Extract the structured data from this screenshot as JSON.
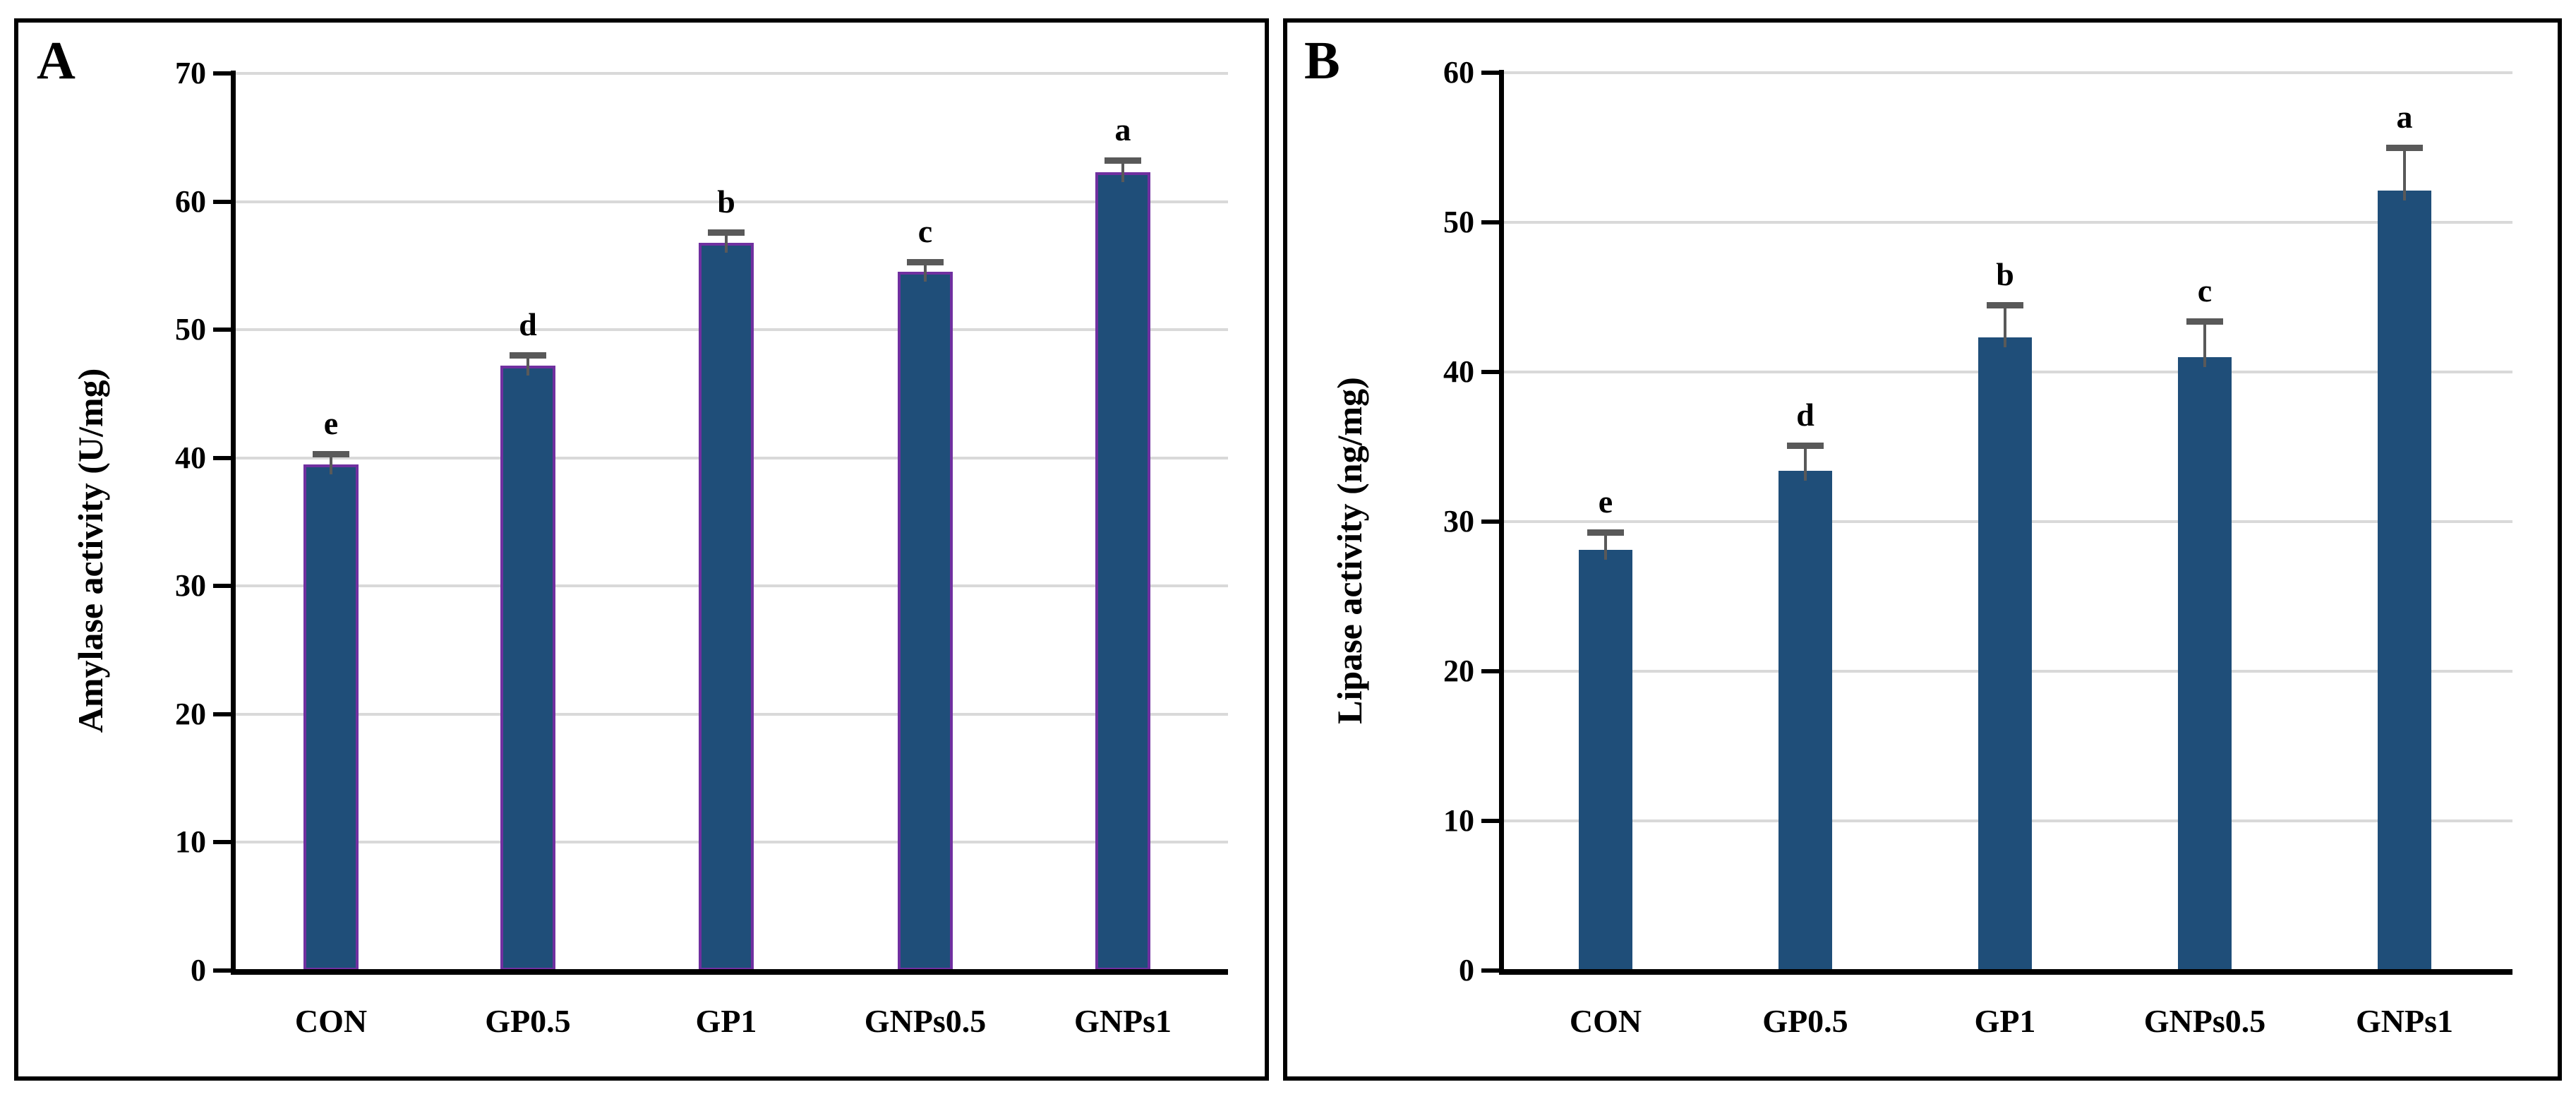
{
  "figure": {
    "background": "#ffffff",
    "panel_border_color": "#000000",
    "gridline_color": "#d9d9d9"
  },
  "chart_data": [
    {
      "type": "bar",
      "panel_label": "A",
      "title": "",
      "xlabel": "",
      "ylabel": "Amylase activity (U/mg)",
      "categories": [
        "CON",
        "GP0.5",
        "GP1",
        "GNPs0.5",
        "GNPs1"
      ],
      "values": [
        39.5,
        47.2,
        56.8,
        54.5,
        62.3
      ],
      "errors": [
        0.8,
        0.8,
        0.8,
        0.8,
        0.9
      ],
      "sig_letters": [
        "e",
        "d",
        "b",
        "c",
        "a"
      ],
      "ylim": [
        0,
        70
      ],
      "yticks": [
        0,
        10,
        20,
        30,
        40,
        50,
        60,
        70
      ],
      "grid": true,
      "legend": "none",
      "bar_fill": "#1F4E79",
      "bar_border": "#7030A0",
      "error_color": "#595959"
    },
    {
      "type": "bar",
      "panel_label": "B",
      "title": "",
      "xlabel": "",
      "ylabel": "Lipase activity (ng/mg)",
      "categories": [
        "CON",
        "GP0.5",
        "GP1",
        "GNPs0.5",
        "GNPs1"
      ],
      "values": [
        28.1,
        33.4,
        42.3,
        41.0,
        52.1
      ],
      "errors": [
        1.2,
        1.7,
        2.2,
        2.4,
        2.9
      ],
      "sig_letters": [
        "e",
        "d",
        "b",
        "c",
        "a"
      ],
      "ylim": [
        0,
        60
      ],
      "yticks": [
        0,
        10,
        20,
        30,
        40,
        50,
        60
      ],
      "grid": true,
      "legend": "none",
      "bar_fill": "#1F4E79",
      "bar_border": null,
      "error_color": "#595959"
    }
  ]
}
